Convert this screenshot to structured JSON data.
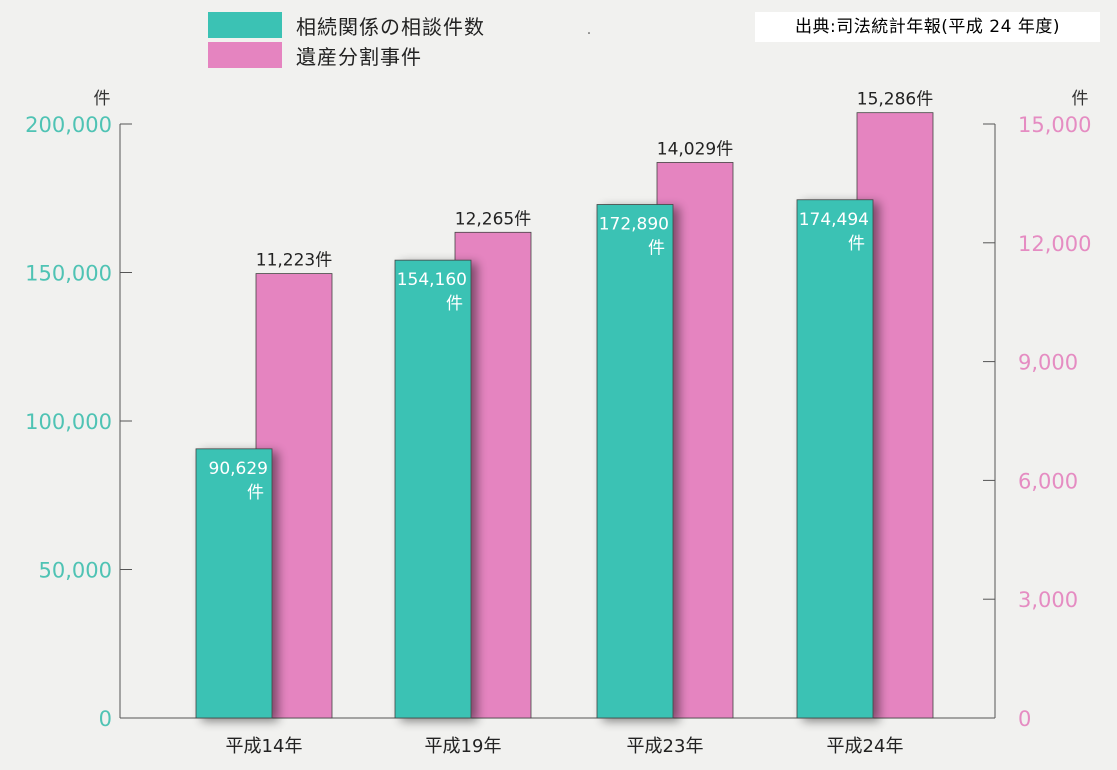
{
  "source": "出典:司法統計年報(平成 24 年度)",
  "colors": {
    "consult": "#3bc2b4",
    "division": "#e584c0",
    "left_axis": "#4fc3b4",
    "right_axis": "#e58cc2",
    "background": "#f1f1ef"
  },
  "chart_data": {
    "type": "bar",
    "categories": [
      "平成14年",
      "平成19年",
      "平成23年",
      "平成24年"
    ],
    "series": [
      {
        "name": "相続関係の相談件数",
        "axis": "left",
        "values": [
          90629,
          154160,
          172890,
          174494
        ],
        "labels": [
          "90,629件",
          "154,160件",
          "172,890件",
          "174,494件"
        ]
      },
      {
        "name": "遺産分割事件",
        "axis": "right",
        "values": [
          11223,
          12265,
          14029,
          15286
        ],
        "labels": [
          "11,223件",
          "12,265件",
          "14,029件",
          "15,286件"
        ]
      }
    ],
    "y_left": {
      "unit": "件",
      "range": [
        0,
        200000
      ],
      "ticks": [
        0,
        50000,
        100000,
        150000,
        200000
      ],
      "tick_labels": [
        "0",
        "50,000",
        "100,000",
        "150,000",
        "200,000"
      ]
    },
    "y_right": {
      "unit": "件",
      "range": [
        0,
        15000
      ],
      "ticks": [
        0,
        3000,
        6000,
        9000,
        12000,
        15000
      ],
      "tick_labels": [
        "0",
        "3,000",
        "6,000",
        "9,000",
        "12,000",
        "15,000"
      ]
    },
    "grid": false,
    "legend": "top-left"
  }
}
